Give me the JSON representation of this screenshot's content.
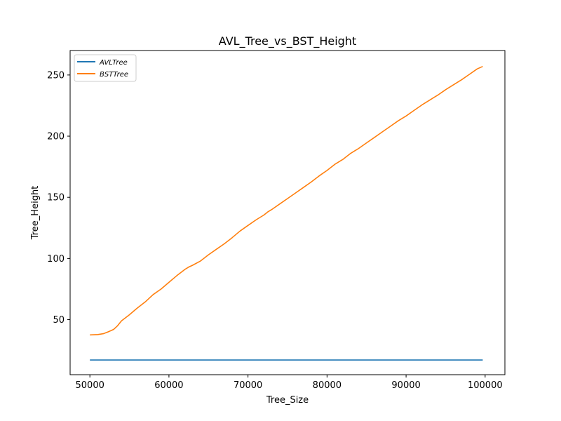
{
  "chart_data": {
    "type": "line",
    "title": "AVL_Tree_vs_BST_Height",
    "xlabel": "Tree_Size",
    "ylabel": "Tree_Height",
    "xlim": [
      47500,
      102500
    ],
    "ylim": [
      5,
      270
    ],
    "xticks": [
      50000,
      60000,
      70000,
      80000,
      90000,
      100000
    ],
    "yticks": [
      50,
      100,
      150,
      200,
      250
    ],
    "grid": false,
    "legend_position": "top-left",
    "series": [
      {
        "name": "AVLTree",
        "color": "#1f77b4",
        "x": [
          50000,
          99700
        ],
        "y": [
          17,
          17
        ]
      },
      {
        "name": "BSTTree",
        "color": "#ff7f0e",
        "x": [
          50000,
          51000,
          51700,
          52300,
          53000,
          53500,
          54000,
          55000,
          56000,
          57000,
          58000,
          59000,
          60000,
          61000,
          62000,
          62500,
          63000,
          64000,
          65000,
          66000,
          67000,
          68000,
          69000,
          70000,
          71000,
          72000,
          72500,
          73000,
          74000,
          75000,
          76000,
          77000,
          78000,
          79000,
          80000,
          81000,
          82000,
          83000,
          84000,
          85000,
          86000,
          87000,
          88000,
          89000,
          90000,
          91000,
          92000,
          93000,
          94000,
          95000,
          96000,
          97000,
          98000,
          99000,
          99700
        ],
        "y": [
          37.5,
          37.8,
          38.5,
          40,
          42,
          45,
          49,
          54,
          59.5,
          64.5,
          70.5,
          75,
          80.5,
          86,
          91,
          93,
          94.5,
          98,
          103,
          107.5,
          112,
          117,
          122.5,
          127,
          131.5,
          135.5,
          138,
          140,
          144.5,
          149,
          153.5,
          158,
          162.5,
          167.5,
          172,
          177,
          181,
          186,
          190,
          194.5,
          199,
          203.5,
          208,
          212.5,
          216.5,
          221,
          225.5,
          229.5,
          233.5,
          238,
          242,
          246,
          250.5,
          255,
          257
        ]
      }
    ]
  }
}
